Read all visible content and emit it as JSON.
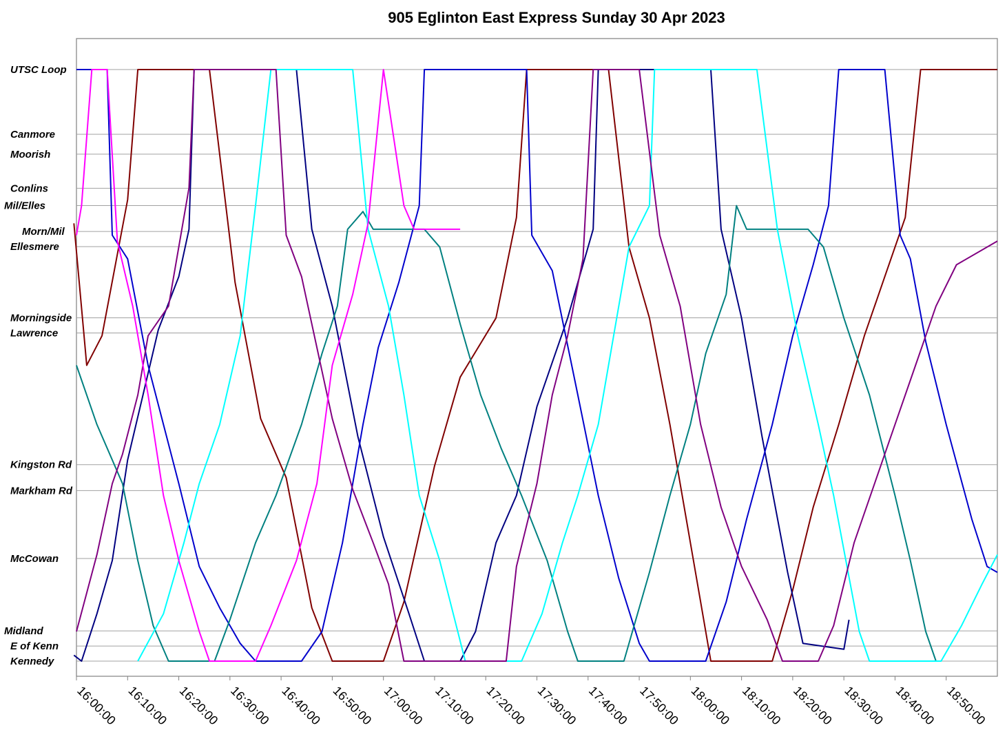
{
  "chart_data": {
    "type": "line",
    "title": "905 Eglinton East Express Sunday 30 Apr 2023",
    "xlabel": "",
    "ylabel": "",
    "x_range": [
      "16:00:00",
      "19:00:00"
    ],
    "x_ticks": [
      "16:00:00",
      "16:10:00",
      "16:20:00",
      "16:30:00",
      "16:40:00",
      "16:50:00",
      "17:00:00",
      "17:10:00",
      "17:20:00",
      "17:30:00",
      "17:40:00",
      "17:50:00",
      "18:00:00",
      "18:10:00",
      "18:20:00",
      "18:30:00",
      "18:40:00",
      "18:50:00"
    ],
    "stops": [
      {
        "name": "UTSC Loop",
        "pos": 0.0
      },
      {
        "name": "Canmore",
        "pos": 0.1095
      },
      {
        "name": "Moorish",
        "pos": 0.1431
      },
      {
        "name": "Conlins",
        "pos": 0.2007
      },
      {
        "name": "Mil/Elles",
        "pos": 0.2299
      },
      {
        "name": "Morn/Mil",
        "pos": 0.2737
      },
      {
        "name": "Ellesmere",
        "pos": 0.2993
      },
      {
        "name": "Morningside",
        "pos": 0.4197
      },
      {
        "name": "Lawrence",
        "pos": 0.4453
      },
      {
        "name": "Kingston Rd",
        "pos": 0.6679
      },
      {
        "name": "Markham Rd",
        "pos": 0.7117
      },
      {
        "name": "McCowan",
        "pos": 0.8266
      },
      {
        "name": "Midland",
        "pos": 0.9489
      },
      {
        "name": "E of Kenn",
        "pos": 0.9745
      },
      {
        "name": "Kennedy",
        "pos": 1.0
      }
    ],
    "grid": true,
    "legend": "none",
    "colors": [
      "#800000",
      "#000080",
      "#0000CC",
      "#008080",
      "#00FFFF",
      "#800080",
      "#FF00FF"
    ],
    "series": [
      {
        "color": "#800000",
        "points": [
          [
            "15:59:30",
            0.26
          ],
          [
            "16:02:00",
            0.5
          ],
          [
            "16:05:00",
            0.45
          ],
          [
            "16:10:00",
            0.22
          ],
          [
            "16:12:00",
            0.0
          ],
          [
            "16:26:00",
            0.0
          ],
          [
            "16:31:00",
            0.36
          ],
          [
            "16:36:00",
            0.59
          ],
          [
            "16:41:00",
            0.69
          ],
          [
            "16:46:00",
            0.91
          ],
          [
            "16:50:00",
            1.0
          ],
          [
            "17:00:00",
            1.0
          ],
          [
            "17:04:00",
            0.9
          ],
          [
            "17:10:00",
            0.67
          ],
          [
            "17:15:00",
            0.52
          ],
          [
            "17:22:00",
            0.42
          ],
          [
            "17:26:00",
            0.25
          ],
          [
            "17:28:00",
            0.0
          ],
          [
            "17:44:00",
            0.0
          ],
          [
            "17:48:00",
            0.3
          ],
          [
            "17:52:00",
            0.42
          ],
          [
            "17:56:00",
            0.6
          ],
          [
            "18:02:00",
            0.9
          ],
          [
            "18:04:00",
            1.0
          ],
          [
            "18:16:00",
            1.0
          ],
          [
            "18:20:00",
            0.88
          ],
          [
            "18:24:00",
            0.74
          ],
          [
            "18:29:00",
            0.6
          ],
          [
            "18:34:00",
            0.45
          ],
          [
            "18:38:00",
            0.35
          ],
          [
            "18:42:00",
            0.25
          ],
          [
            "18:45:00",
            0.0
          ],
          [
            "19:00:00",
            0.0
          ]
        ]
      },
      {
        "color": "#000080",
        "points": [
          [
            "15:59:30",
            0.99
          ],
          [
            "16:01:00",
            1.0
          ],
          [
            "16:04:00",
            0.92
          ],
          [
            "16:07:00",
            0.83
          ],
          [
            "16:10:00",
            0.66
          ],
          [
            "16:13:00",
            0.55
          ],
          [
            "16:16:00",
            0.44
          ],
          [
            "16:20:00",
            0.35
          ],
          [
            "16:22:00",
            0.27
          ],
          [
            "16:23:00",
            0.0
          ],
          [
            "16:35:00",
            0.0
          ],
          [
            "16:43:00",
            0.0
          ],
          [
            "16:46:00",
            0.27
          ],
          [
            "16:50:00",
            0.4
          ],
          [
            "16:55:00",
            0.62
          ],
          [
            "17:00:00",
            0.79
          ],
          [
            "17:05:00",
            0.92
          ],
          [
            "17:08:00",
            1.0
          ],
          [
            "17:15:00",
            1.0
          ],
          [
            "17:18:00",
            0.95
          ],
          [
            "17:22:00",
            0.8
          ],
          [
            "17:26:00",
            0.72
          ],
          [
            "17:30:00",
            0.57
          ],
          [
            "17:36:00",
            0.42
          ],
          [
            "17:41:00",
            0.27
          ],
          [
            "17:42:00",
            0.0
          ],
          [
            "17:55:00",
            0.0
          ],
          [
            "18:04:00",
            0.0
          ],
          [
            "18:06:00",
            0.27
          ],
          [
            "18:10:00",
            0.42
          ],
          [
            "18:14:00",
            0.62
          ],
          [
            "18:19:00",
            0.85
          ],
          [
            "18:22:00",
            0.97
          ],
          [
            "18:30:00",
            0.98
          ],
          [
            "18:31:00",
            0.93
          ]
        ]
      },
      {
        "color": "#0000CC",
        "points": [
          [
            "16:00:00",
            0.0
          ],
          [
            "16:06:00",
            0.0
          ],
          [
            "16:07:00",
            0.28
          ],
          [
            "16:10:00",
            0.32
          ],
          [
            "16:14:00",
            0.5
          ],
          [
            "16:20:00",
            0.7
          ],
          [
            "16:24:00",
            0.84
          ],
          [
            "16:28:00",
            0.91
          ],
          [
            "16:32:00",
            0.97
          ],
          [
            "16:35:00",
            1.0
          ],
          [
            "16:44:00",
            1.0
          ],
          [
            "16:48:00",
            0.95
          ],
          [
            "16:52:00",
            0.8
          ],
          [
            "16:56:00",
            0.6
          ],
          [
            "16:59:00",
            0.47
          ],
          [
            "17:03:00",
            0.36
          ],
          [
            "17:07:00",
            0.23
          ],
          [
            "17:08:00",
            0.0
          ],
          [
            "17:20:00",
            0.0
          ],
          [
            "17:28:00",
            0.0
          ],
          [
            "17:29:00",
            0.28
          ],
          [
            "17:33:00",
            0.34
          ],
          [
            "17:38:00",
            0.55
          ],
          [
            "17:42:00",
            0.72
          ],
          [
            "17:46:00",
            0.86
          ],
          [
            "17:50:00",
            0.97
          ],
          [
            "17:52:00",
            1.0
          ],
          [
            "18:03:00",
            1.0
          ],
          [
            "18:07:00",
            0.9
          ],
          [
            "18:11:00",
            0.76
          ],
          [
            "18:16:00",
            0.6
          ],
          [
            "18:20:00",
            0.45
          ],
          [
            "18:24:00",
            0.33
          ],
          [
            "18:27:00",
            0.23
          ],
          [
            "18:29:00",
            0.0
          ],
          [
            "18:38:00",
            0.0
          ],
          [
            "18:41:00",
            0.28
          ],
          [
            "18:43:00",
            0.32
          ],
          [
            "18:46:00",
            0.46
          ],
          [
            "18:50:00",
            0.6
          ],
          [
            "18:55:00",
            0.76
          ],
          [
            "18:58:00",
            0.84
          ],
          [
            "19:00:00",
            0.85
          ]
        ]
      },
      {
        "color": "#008080",
        "points": [
          [
            "16:00:00",
            0.5
          ],
          [
            "16:04:00",
            0.6
          ],
          [
            "16:09:00",
            0.7
          ],
          [
            "16:12:00",
            0.83
          ],
          [
            "16:15:00",
            0.94
          ],
          [
            "16:18:00",
            1.0
          ],
          [
            "16:27:00",
            1.0
          ],
          [
            "16:30:00",
            0.93
          ],
          [
            "16:35:00",
            0.8
          ],
          [
            "16:39:00",
            0.72
          ],
          [
            "16:44:00",
            0.6
          ],
          [
            "16:48:00",
            0.48
          ],
          [
            "16:51:00",
            0.4
          ],
          [
            "16:53:00",
            0.27
          ],
          [
            "16:56:00",
            0.24
          ],
          [
            "16:58:00",
            0.27
          ],
          [
            "17:08:00",
            0.27
          ],
          [
            "17:11:00",
            0.3
          ],
          [
            "17:15:00",
            0.43
          ],
          [
            "17:19:00",
            0.55
          ],
          [
            "17:23:00",
            0.64
          ],
          [
            "17:27:00",
            0.72
          ],
          [
            "17:32:00",
            0.83
          ],
          [
            "17:36:00",
            0.95
          ],
          [
            "17:38:00",
            1.0
          ],
          [
            "17:47:00",
            1.0
          ],
          [
            "17:52:00",
            0.85
          ],
          [
            "17:56:00",
            0.72
          ],
          [
            "18:00:00",
            0.6
          ],
          [
            "18:03:00",
            0.48
          ],
          [
            "18:07:00",
            0.38
          ],
          [
            "18:09:00",
            0.23
          ],
          [
            "18:11:00",
            0.27
          ],
          [
            "18:23:00",
            0.27
          ],
          [
            "18:26:00",
            0.3
          ],
          [
            "18:30:00",
            0.42
          ],
          [
            "18:35:00",
            0.55
          ],
          [
            "18:40:00",
            0.72
          ],
          [
            "18:43:00",
            0.83
          ],
          [
            "18:46:00",
            0.95
          ],
          [
            "18:48:00",
            1.0
          ]
        ]
      },
      {
        "color": "#00FFFF",
        "points": [
          [
            "16:12:00",
            1.0
          ],
          [
            "16:17:00",
            0.92
          ],
          [
            "16:21:00",
            0.8
          ],
          [
            "16:24:00",
            0.7
          ],
          [
            "16:28:00",
            0.6
          ],
          [
            "16:32:00",
            0.45
          ],
          [
            "16:35:00",
            0.23
          ],
          [
            "16:38:00",
            0.0
          ],
          [
            "16:54:00",
            0.0
          ],
          [
            "16:57:00",
            0.27
          ],
          [
            "17:01:00",
            0.4
          ],
          [
            "17:04:00",
            0.55
          ],
          [
            "17:07:00",
            0.72
          ],
          [
            "17:11:00",
            0.83
          ],
          [
            "17:16:00",
            1.0
          ],
          [
            "17:23:00",
            1.0
          ],
          [
            "17:27:00",
            1.0
          ],
          [
            "17:31:00",
            0.92
          ],
          [
            "17:35:00",
            0.8
          ],
          [
            "17:38:00",
            0.72
          ],
          [
            "17:42:00",
            0.6
          ],
          [
            "17:45:00",
            0.45
          ],
          [
            "17:48:00",
            0.3
          ],
          [
            "17:52:00",
            0.23
          ],
          [
            "17:53:00",
            0.0
          ],
          [
            "18:13:00",
            0.0
          ],
          [
            "18:17:00",
            0.27
          ],
          [
            "18:21:00",
            0.45
          ],
          [
            "18:25:00",
            0.6
          ],
          [
            "18:28:00",
            0.72
          ],
          [
            "18:33:00",
            0.95
          ],
          [
            "18:35:00",
            1.0
          ],
          [
            "18:49:00",
            1.0
          ],
          [
            "18:53:00",
            0.94
          ],
          [
            "18:57:00",
            0.87
          ],
          [
            "19:00:00",
            0.82
          ]
        ]
      },
      {
        "color": "#800080",
        "points": [
          [
            "16:00:00",
            0.95
          ],
          [
            "16:04:00",
            0.82
          ],
          [
            "16:07:00",
            0.7
          ],
          [
            "16:09:00",
            0.65
          ],
          [
            "16:12:00",
            0.55
          ],
          [
            "16:14:00",
            0.45
          ],
          [
            "16:18:00",
            0.4
          ],
          [
            "16:22:00",
            0.2
          ],
          [
            "16:23:00",
            0.0
          ],
          [
            "16:30:00",
            0.0
          ],
          [
            "16:39:00",
            0.0
          ],
          [
            "16:41:00",
            0.28
          ],
          [
            "16:44:00",
            0.35
          ],
          [
            "16:50:00",
            0.59
          ],
          [
            "16:54:00",
            0.71
          ],
          [
            "16:58:00",
            0.8
          ],
          [
            "17:01:00",
            0.87
          ],
          [
            "17:04:00",
            1.0
          ],
          [
            "17:24:00",
            1.0
          ],
          [
            "17:26:00",
            0.84
          ],
          [
            "17:30:00",
            0.7
          ],
          [
            "17:33:00",
            0.55
          ],
          [
            "17:36:00",
            0.45
          ],
          [
            "17:39:00",
            0.32
          ],
          [
            "17:41:00",
            0.0
          ],
          [
            "17:50:00",
            0.0
          ],
          [
            "17:54:00",
            0.28
          ],
          [
            "17:58:00",
            0.4
          ],
          [
            "18:02:00",
            0.6
          ],
          [
            "18:06:00",
            0.74
          ],
          [
            "18:10:00",
            0.84
          ],
          [
            "18:15:00",
            0.93
          ],
          [
            "18:18:00",
            1.0
          ],
          [
            "18:25:00",
            1.0
          ],
          [
            "18:28:00",
            0.94
          ],
          [
            "18:32:00",
            0.8
          ],
          [
            "18:36:00",
            0.7
          ],
          [
            "18:40:00",
            0.6
          ],
          [
            "18:44:00",
            0.5
          ],
          [
            "18:48:00",
            0.4
          ],
          [
            "18:52:00",
            0.33
          ],
          [
            "19:00:00",
            0.29
          ]
        ]
      },
      {
        "color": "#FF00FF",
        "points": [
          [
            "16:00:00",
            0.28
          ],
          [
            "16:01:00",
            0.23
          ],
          [
            "16:03:00",
            0.0
          ],
          [
            "16:06:00",
            0.0
          ],
          [
            "16:08:00",
            0.29
          ],
          [
            "16:11:00",
            0.4
          ],
          [
            "16:14:00",
            0.55
          ],
          [
            "16:17:00",
            0.72
          ],
          [
            "16:20:00",
            0.83
          ],
          [
            "16:24:00",
            0.95
          ],
          [
            "16:26:00",
            1.0
          ],
          [
            "16:35:00",
            1.0
          ],
          [
            "16:38:00",
            0.94
          ],
          [
            "16:43:00",
            0.83
          ],
          [
            "16:47:00",
            0.7
          ],
          [
            "16:50:00",
            0.5
          ],
          [
            "16:54:00",
            0.38
          ],
          [
            "16:57:00",
            0.26
          ],
          [
            "17:00:00",
            0.0
          ],
          [
            "17:04:00",
            0.23
          ],
          [
            "17:06:00",
            0.27
          ],
          [
            "17:15:00",
            0.27
          ]
        ]
      }
    ]
  }
}
